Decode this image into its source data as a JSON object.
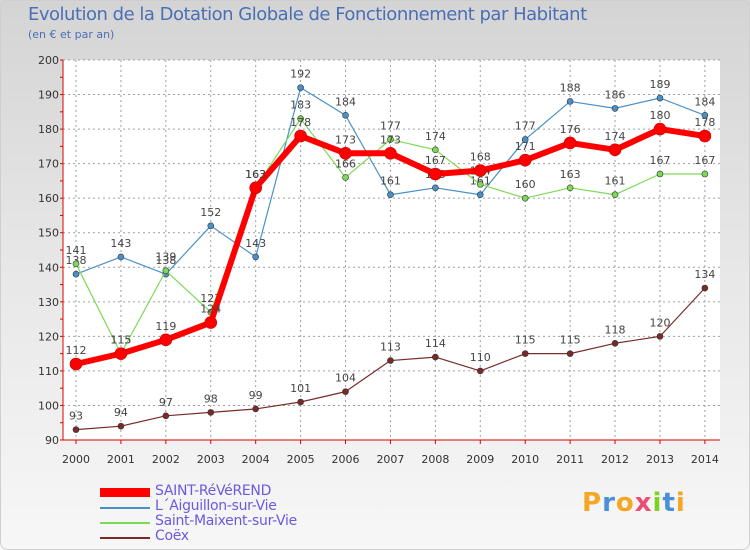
{
  "chart_data": {
    "type": "line",
    "title": "Evolution de la Dotation Globale de Fonctionnement par Habitant",
    "subtitle": "(en € et par an)",
    "xlabel": "",
    "ylabel": "",
    "ylim": [
      90,
      200
    ],
    "yticks": [
      90,
      100,
      110,
      120,
      130,
      140,
      150,
      160,
      170,
      180,
      190,
      200
    ],
    "categories": [
      "2000",
      "2001",
      "2002",
      "2003",
      "2004",
      "2005",
      "2006",
      "2007",
      "2008",
      "2009",
      "2010",
      "2011",
      "2012",
      "2013",
      "2014"
    ],
    "grid": true,
    "legend_position": "bottom-left",
    "series": [
      {
        "name": "L´Aiguillon-sur-Vie",
        "color": "#4a90c8",
        "width": 1.2,
        "values": [
          138,
          143,
          138,
          152,
          143,
          192,
          184,
          161,
          163,
          161,
          177,
          188,
          186,
          189,
          184
        ]
      },
      {
        "name": "Saint-Maixent-sur-Vie",
        "color": "#7ed957",
        "width": 1.2,
        "values": [
          141,
          115,
          139,
          127,
          163,
          183,
          166,
          177,
          174,
          164,
          160,
          163,
          161,
          167,
          167
        ]
      },
      {
        "name": "Coëx",
        "color": "#7a2a2a",
        "width": 1.2,
        "values": [
          93,
          94,
          97,
          98,
          99,
          101,
          104,
          113,
          114,
          110,
          115,
          115,
          118,
          120,
          134
        ]
      },
      {
        "name": "SAINT-RéVéREND",
        "color": "#ff0000",
        "width": 6,
        "values": [
          112,
          115,
          119,
          124,
          163,
          178,
          173,
          173,
          167,
          168,
          171,
          176,
          174,
          180,
          178
        ]
      }
    ],
    "legend": [
      "SAINT-RéVéREND",
      "L´Aiguillon-sur-Vie",
      "Saint-Maixent-sur-Vie",
      "Coëx"
    ]
  },
  "logo": {
    "letters": [
      "P",
      "r",
      "o",
      "x",
      "i",
      "t",
      "i"
    ],
    "colors": [
      "#f5a623",
      "#4a90d9",
      "#f5a623",
      "#e94e77",
      "#7ed321",
      "#4a90d9",
      "#f5a623"
    ]
  }
}
